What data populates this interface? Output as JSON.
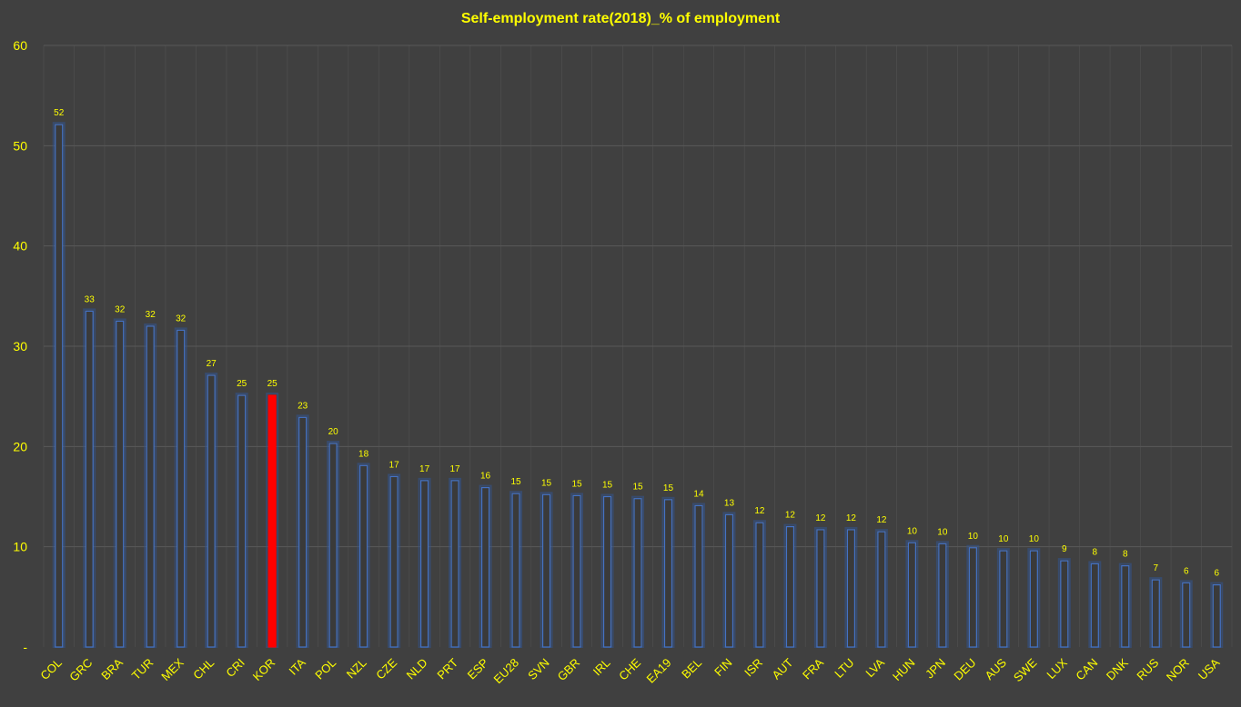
{
  "chart_data": {
    "type": "bar",
    "title": "Self-employment rate(2018)_% of employment",
    "xlabel": "",
    "ylabel": "",
    "ylim": [
      0,
      60
    ],
    "yticks": [
      {
        "value": 0,
        "label": "-"
      },
      {
        "value": 10,
        "label": "10"
      },
      {
        "value": 20,
        "label": "20"
      },
      {
        "value": 30,
        "label": "30"
      },
      {
        "value": 40,
        "label": "40"
      },
      {
        "value": 50,
        "label": "50"
      },
      {
        "value": 60,
        "label": "60"
      }
    ],
    "grid": true,
    "categories": [
      "COL",
      "GRC",
      "BRA",
      "TUR",
      "MEX",
      "CHL",
      "CRI",
      "KOR",
      "ITA",
      "POL",
      "NZL",
      "CZE",
      "NLD",
      "PRT",
      "ESP",
      "EU28",
      "SVN",
      "GBR",
      "IRL",
      "CHE",
      "EA19",
      "BEL",
      "FIN",
      "ISR",
      "AUT",
      "FRA",
      "LTU",
      "LVA",
      "HUN",
      "JPN",
      "DEU",
      "AUS",
      "SWE",
      "LUX",
      "CAN",
      "DNK",
      "RUS",
      "NOR",
      "USA"
    ],
    "values": [
      52.1,
      33.5,
      32.5,
      32.0,
      31.6,
      27.1,
      25.1,
      25.1,
      22.9,
      20.3,
      18.1,
      17.0,
      16.6,
      16.6,
      15.9,
      15.3,
      15.2,
      15.1,
      15.0,
      14.8,
      14.7,
      14.1,
      13.2,
      12.4,
      12.0,
      11.7,
      11.7,
      11.5,
      10.4,
      10.3,
      9.9,
      9.6,
      9.6,
      8.6,
      8.3,
      8.1,
      6.7,
      6.4,
      6.2
    ],
    "data_labels": [
      "52",
      "33",
      "32",
      "32",
      "32",
      "27",
      "25",
      "25",
      "23",
      "20",
      "18",
      "17",
      "17",
      "17",
      "16",
      "15",
      "15",
      "15",
      "15",
      "15",
      "15",
      "14",
      "13",
      "12",
      "12",
      "12",
      "12",
      "12",
      "10",
      "10",
      "10",
      "10",
      "10",
      "9",
      "8",
      "8",
      "7",
      "6",
      "6"
    ],
    "highlight_category": "KOR",
    "colors": {
      "background": "#404040",
      "bar_fill": "#3A3A3A",
      "bar_stroke": "#4472C4",
      "bar_glow": "#2F5597",
      "highlight_fill": "#FF0000",
      "text": "#FFFF00",
      "grid": "#595959"
    }
  }
}
